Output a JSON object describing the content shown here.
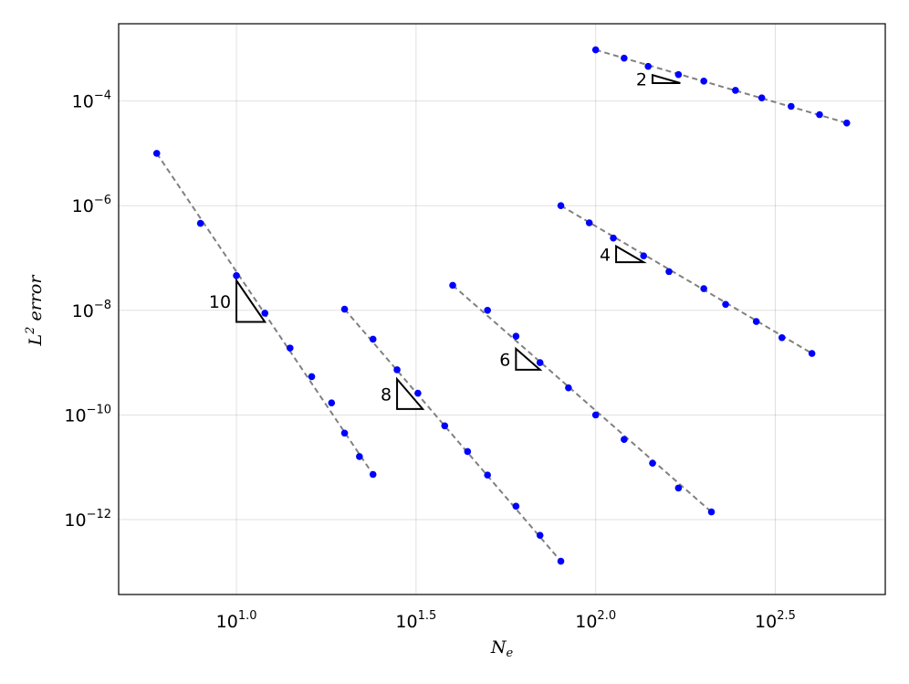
{
  "chart_data": {
    "type": "scatter",
    "xscale": "log10",
    "yscale": "log10",
    "xlim": [
      4.7,
      640
    ],
    "ylim": [
      3.7e-14,
      0.003
    ],
    "grid": true,
    "xlabel": "N_e",
    "xlabel_base": "N",
    "xlabel_sub": "e",
    "ylabel": "L^2 error",
    "ylabel_base": "L",
    "ylabel_sup": "2",
    "ylabel_rest": " error",
    "xticks": [
      {
        "value": 10,
        "base": "10",
        "exp": "1.0"
      },
      {
        "value": 31.623,
        "base": "10",
        "exp": "1.5"
      },
      {
        "value": 100,
        "base": "10",
        "exp": "2.0"
      },
      {
        "value": 316.23,
        "base": "10",
        "exp": "2.5"
      }
    ],
    "yticks": [
      {
        "value": 0.0001,
        "base": "10",
        "exp": "−4"
      },
      {
        "value": 1e-06,
        "base": "10",
        "exp": "−6"
      },
      {
        "value": 1e-08,
        "base": "10",
        "exp": "−8"
      },
      {
        "value": 1e-10,
        "base": "10",
        "exp": "−10"
      },
      {
        "value": 1e-12,
        "base": "10",
        "exp": "−12"
      }
    ],
    "colors": {
      "points": "#0000ff",
      "fit_lines": "#808080",
      "grid": "#e0e0e0"
    },
    "series": [
      {
        "order": 10,
        "x": [
          6.0,
          7.94,
          10.0,
          12.0,
          14.1,
          16.2,
          18.4,
          20.0,
          22.0,
          24.0
        ],
        "y": [
          1e-05,
          4.6e-07,
          4.6e-08,
          8.8e-09,
          1.9e-09,
          5.4e-10,
          1.7e-10,
          4.5e-11,
          1.6e-11,
          7.3e-12
        ]
      },
      {
        "order": 8,
        "x": [
          20.0,
          24.0,
          28.0,
          32.0,
          38.0,
          44.0,
          50.0,
          60.0,
          70.0,
          80.0
        ],
        "y": [
          1.05e-08,
          2.8e-09,
          7.3e-10,
          2.6e-10,
          6.2e-11,
          2e-11,
          7.1e-12,
          1.8e-12,
          5e-13,
          1.6e-13
        ]
      },
      {
        "order": 6,
        "x": [
          40.0,
          50.0,
          60.0,
          70.0,
          84.0,
          100.0,
          120.0,
          144.0,
          170.0,
          210.0
        ],
        "y": [
          3e-08,
          1e-08,
          3.2e-09,
          1e-09,
          3.3e-10,
          1e-10,
          3.4e-11,
          1.2e-11,
          4e-12,
          1.4e-12
        ]
      },
      {
        "order": 4,
        "x": [
          80.0,
          96.0,
          112.0,
          136.0,
          160.0,
          200.0,
          230.0,
          280.0,
          330.0,
          400.0
        ],
        "y": [
          1e-06,
          4.7e-07,
          2.4e-07,
          1.1e-07,
          5.5e-08,
          2.6e-08,
          1.3e-08,
          6.1e-09,
          3e-09,
          1.5e-09
        ]
      },
      {
        "order": 2,
        "x": [
          100.0,
          120.0,
          140.0,
          170.0,
          200.0,
          245.0,
          290.0,
          350.0,
          420.0,
          500.0
        ],
        "y": [
          0.00095,
          0.00066,
          0.00046,
          0.00032,
          0.00024,
          0.00016,
          0.000115,
          7.9e-05,
          5.5e-05,
          3.8e-05
        ]
      }
    ],
    "slope_markers": [
      {
        "label": "10",
        "order": 10,
        "x0": 10.0,
        "x1": 12.0,
        "y0": 6e-09
      },
      {
        "label": "8",
        "order": 8,
        "x0": 28.0,
        "x1": 33.0,
        "y0": 1.3e-10
      },
      {
        "label": "6",
        "order": 6,
        "x0": 60.0,
        "x1": 70.0,
        "y0": 7.3e-10
      },
      {
        "label": "4",
        "order": 4,
        "x0": 114.0,
        "x1": 136.0,
        "y0": 8.3e-08
      },
      {
        "label": "2",
        "order": 2,
        "x0": 144.0,
        "x1": 172.0,
        "y0": 0.00022
      }
    ]
  }
}
